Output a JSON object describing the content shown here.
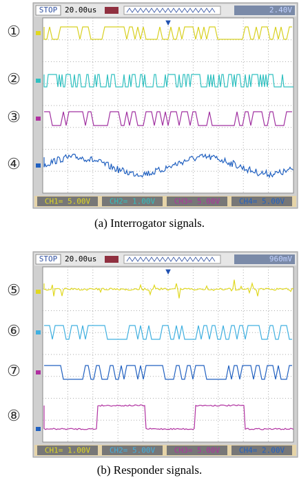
{
  "panels": [
    {
      "status": {
        "state": "STOP",
        "timebase": "20.00us",
        "trigger_level": "2.40V"
      },
      "channels": [
        "CH1= 5.00V",
        "CH2= 1.00V",
        "CH3= 5.00V",
        "CH4= 5.00V"
      ],
      "labels": [
        "①",
        "②",
        "③",
        "④"
      ],
      "caption": "(a) Interrogator signals."
    },
    {
      "status": {
        "state": "STOP",
        "timebase": "20.00us",
        "trigger_level": "960mV"
      },
      "channels": [
        "CH1= 1.00V",
        "CH2= 5.00V",
        "CH3= 5.00V",
        "CH4= 2.00V"
      ],
      "labels": [
        "⑤",
        "⑥",
        "⑦",
        "⑧"
      ],
      "caption": "(b) Responder signals."
    }
  ]
}
